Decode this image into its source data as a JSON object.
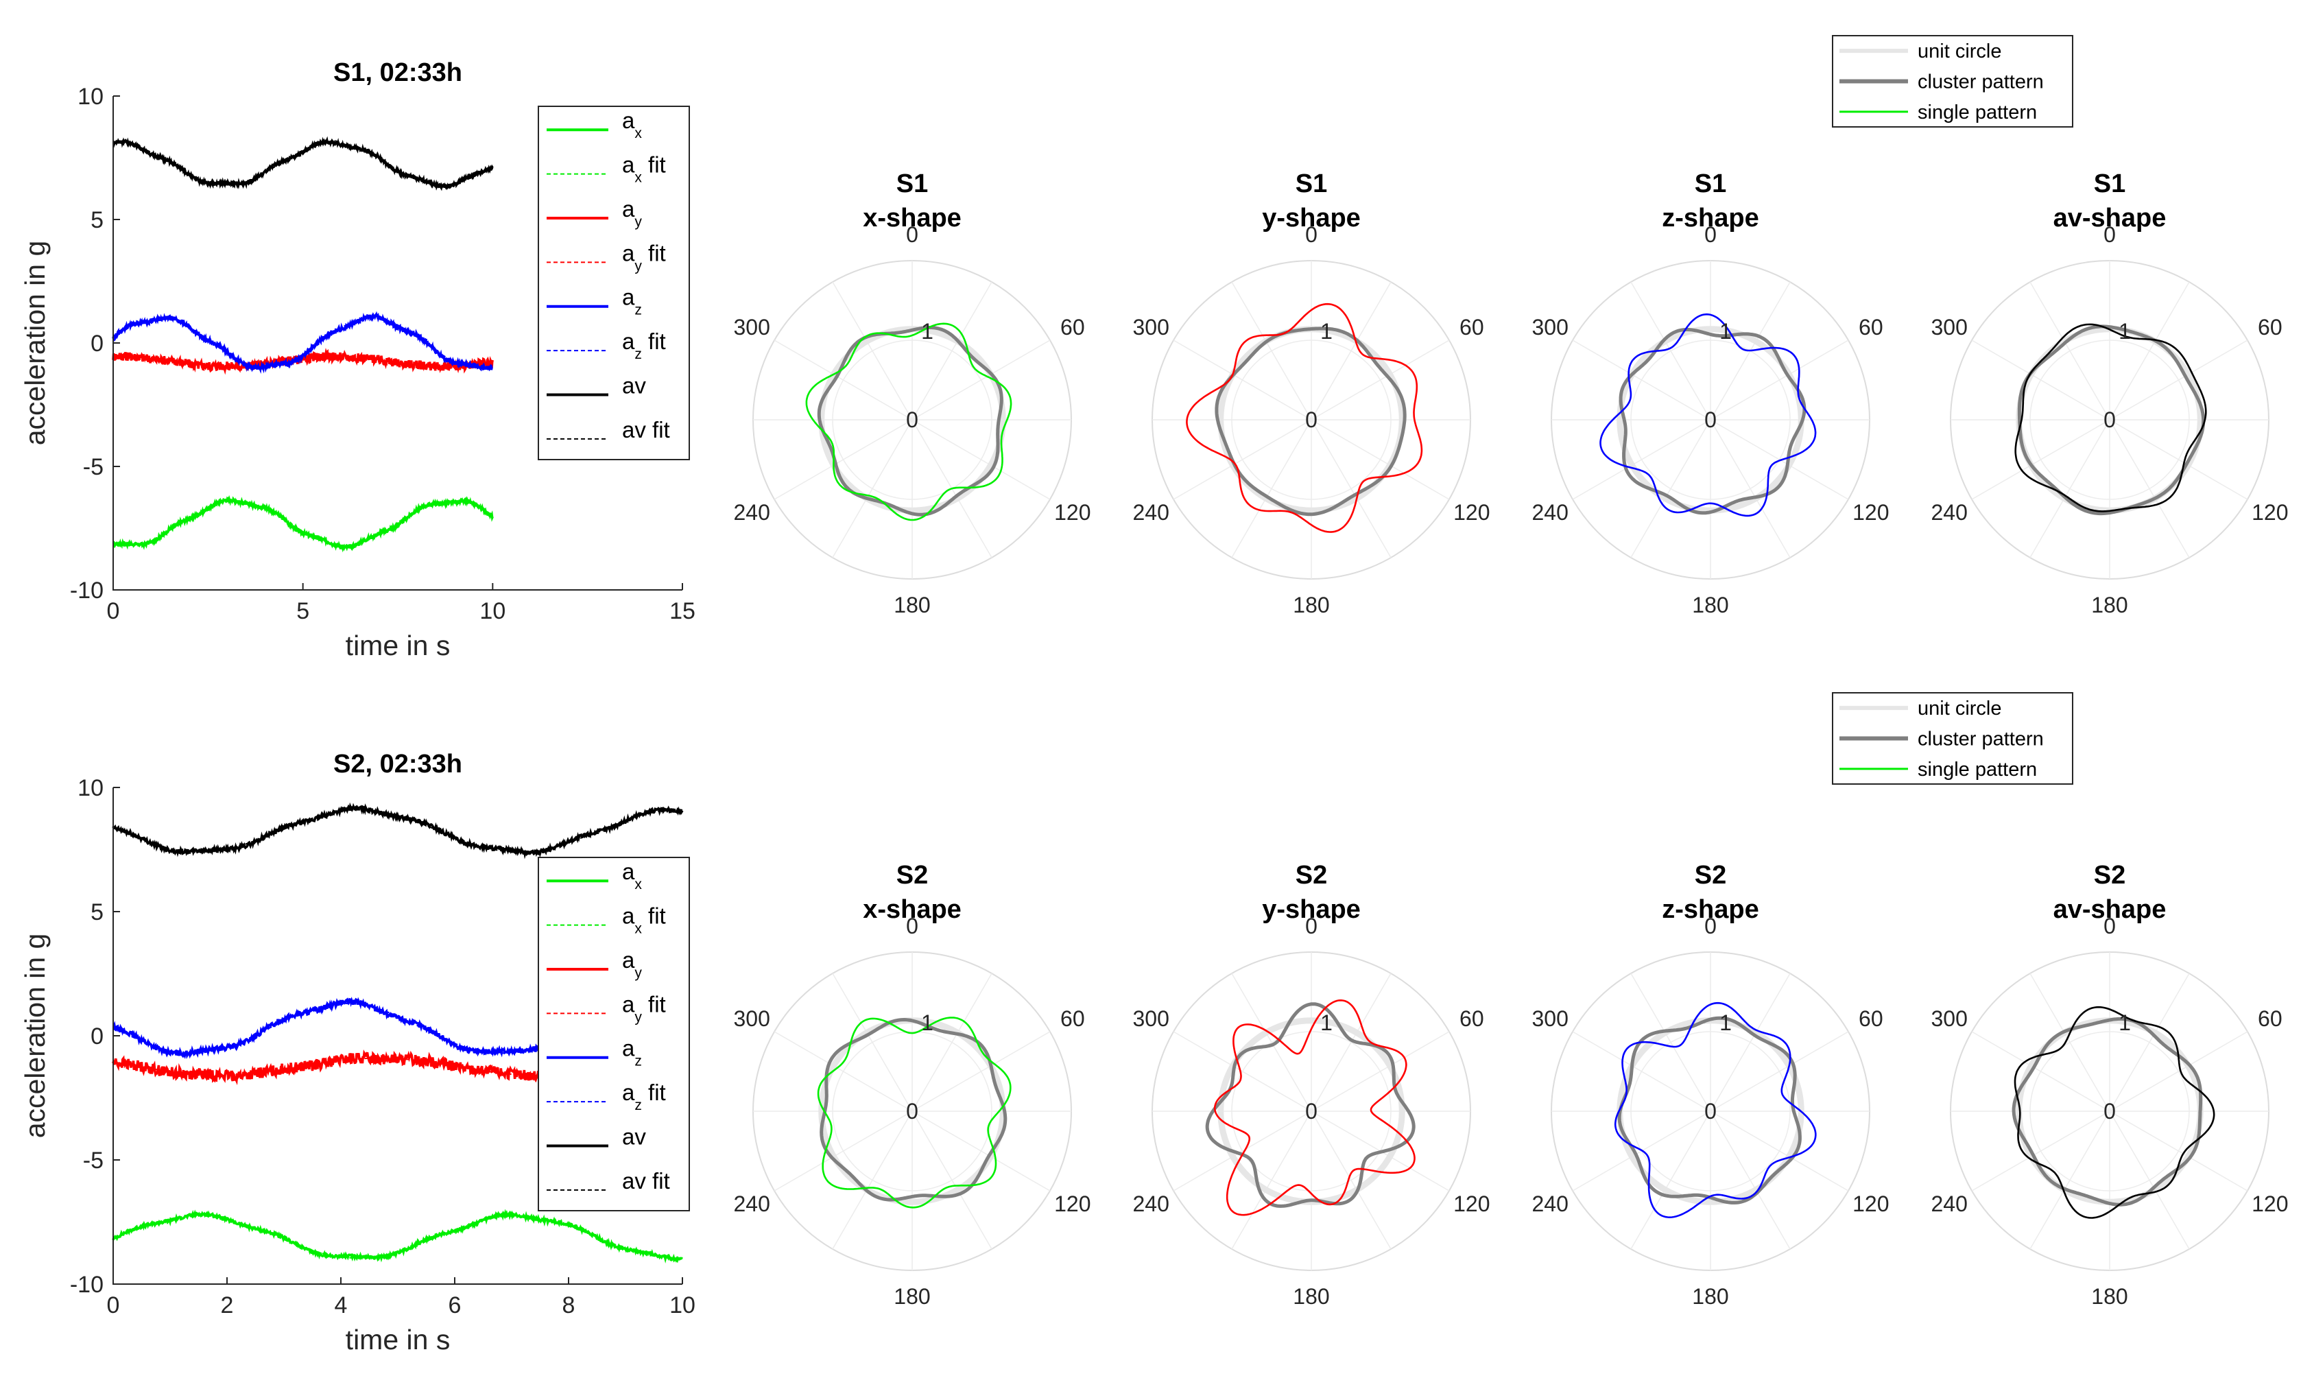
{
  "chart_data": [
    {
      "type": "line",
      "title": "S1, 02:33h",
      "xlabel": "time in s",
      "ylabel": "acceleration in g",
      "xlim": [
        0,
        15
      ],
      "ylim": [
        -10,
        10
      ],
      "xticks": [
        "0",
        "5",
        "10",
        "15"
      ],
      "yticks": [
        "-10",
        "-5",
        "0",
        "5",
        "10"
      ],
      "x_range": [
        0,
        10
      ],
      "legend_position": "top-right",
      "legend": [
        {
          "name": "a",
          "sub": "x",
          "suffix": "",
          "color": "#00ee00",
          "dash": false
        },
        {
          "name": "a",
          "sub": "x",
          "suffix": " fit",
          "color": "#00ee00",
          "dash": true
        },
        {
          "name": "a",
          "sub": "y",
          "suffix": "",
          "color": "#ff0000",
          "dash": false
        },
        {
          "name": "a",
          "sub": "y",
          "suffix": " fit",
          "color": "#ff0000",
          "dash": true
        },
        {
          "name": "a",
          "sub": "z",
          "suffix": "",
          "color": "#0000ff",
          "dash": false
        },
        {
          "name": "a",
          "sub": "z",
          "suffix": " fit",
          "color": "#0000ff",
          "dash": true
        },
        {
          "name": "av",
          "sub": "",
          "suffix": "",
          "color": "#000000",
          "dash": false
        },
        {
          "name": "av",
          "sub": "",
          "suffix": " fit",
          "color": "#000000",
          "dash": true
        }
      ],
      "series": [
        {
          "name": "ax",
          "color": "#00ee00",
          "offset": -7.3,
          "amp": 0.9,
          "period": 5.7,
          "phase": 4.3,
          "noise": 0.06
        },
        {
          "name": "ay",
          "color": "#ff0000",
          "offset": -0.75,
          "amp": 0.2,
          "period": 5.7,
          "phase": 1.4,
          "noise": 0.18
        },
        {
          "name": "az",
          "color": "#0000ff",
          "offset": 0.0,
          "amp": 1.0,
          "period": 5.6,
          "phase": 0.2,
          "noise": 0.08
        },
        {
          "name": "av",
          "color": "#000000",
          "offset": 7.25,
          "amp": 0.85,
          "period": 5.7,
          "phase": 1.45,
          "noise": 0.06
        }
      ]
    },
    {
      "type": "line",
      "title": "S2, 02:33h",
      "xlabel": "time in s",
      "ylabel": "acceleration in g",
      "xlim": [
        0,
        10
      ],
      "ylim": [
        -10,
        10
      ],
      "xticks": [
        "0",
        "2",
        "4",
        "6",
        "8",
        "10"
      ],
      "yticks": [
        "-10",
        "-5",
        "0",
        "5",
        "10"
      ],
      "x_range": [
        0,
        10
      ],
      "legend_position": "right",
      "legend": [
        {
          "name": "a",
          "sub": "x",
          "suffix": "",
          "color": "#00ee00",
          "dash": false
        },
        {
          "name": "a",
          "sub": "x",
          "suffix": " fit",
          "color": "#00ee00",
          "dash": true
        },
        {
          "name": "a",
          "sub": "y",
          "suffix": "",
          "color": "#ff0000",
          "dash": false
        },
        {
          "name": "a",
          "sub": "y",
          "suffix": " fit",
          "color": "#ff0000",
          "dash": true
        },
        {
          "name": "a",
          "sub": "z",
          "suffix": "",
          "color": "#0000ff",
          "dash": false
        },
        {
          "name": "a",
          "sub": "z",
          "suffix": " fit",
          "color": "#0000ff",
          "dash": true
        },
        {
          "name": "av",
          "sub": "",
          "suffix": "",
          "color": "#000000",
          "dash": false
        },
        {
          "name": "av",
          "sub": "",
          "suffix": " fit",
          "color": "#000000",
          "dash": true
        }
      ],
      "series": [
        {
          "name": "ax",
          "color": "#00ee00",
          "offset": -8.1,
          "amp": 0.85,
          "period": 5.6,
          "phase": -0.1,
          "noise": 0.06
        },
        {
          "name": "ay",
          "color": "#ff0000",
          "offset": -1.25,
          "amp": 0.35,
          "period": 5.6,
          "phase": 2.6,
          "noise": 0.22
        },
        {
          "name": "az",
          "color": "#0000ff",
          "offset": 0.3,
          "amp": 1.0,
          "period": 5.4,
          "phase": 3.1,
          "noise": 0.1
        },
        {
          "name": "av",
          "color": "#000000",
          "offset": 8.25,
          "amp": 0.85,
          "period": 5.6,
          "phase": 3.0,
          "noise": 0.08
        }
      ]
    },
    {
      "type": "polar",
      "sensor": "S1",
      "shape": "x-shape",
      "angle_labels": [
        "0",
        "60",
        "120",
        "180",
        "240",
        "300"
      ],
      "r_labels": [
        "0",
        "1"
      ],
      "color": "#00ee00",
      "cluster_amp": [
        0.0,
        0.04
      ],
      "single_amp": [
        0.05,
        0.09
      ],
      "single_bias": 0.02
    },
    {
      "type": "polar",
      "sensor": "S1",
      "shape": "y-shape",
      "angle_labels": [
        "0",
        "60",
        "120",
        "180",
        "240",
        "300"
      ],
      "r_labels": [
        "0",
        "1"
      ],
      "color": "#ff0000",
      "cluster_amp": [
        0.03,
        0.02
      ],
      "single_amp": [
        0.1,
        0.12
      ],
      "single_bias": 0.12
    },
    {
      "type": "polar",
      "sensor": "S1",
      "shape": "z-shape",
      "angle_labels": [
        "0",
        "60",
        "120",
        "180",
        "240",
        "300"
      ],
      "r_labels": [
        "0",
        "1"
      ],
      "color": "#0000ff",
      "cluster_amp": [
        0.02,
        0.05
      ],
      "single_amp": [
        0.06,
        0.12
      ],
      "single_bias": 0.03
    },
    {
      "type": "polar",
      "sensor": "S1",
      "shape": "av-shape",
      "angle_labels": [
        "0",
        "60",
        "120",
        "180",
        "240",
        "300"
      ],
      "r_labels": [
        "0",
        "1"
      ],
      "color": "#000000",
      "cluster_amp": [
        0.02,
        0.02
      ],
      "single_amp": [
        0.05,
        0.04
      ],
      "single_bias": 0.02
    },
    {
      "type": "polar",
      "sensor": "S2",
      "shape": "x-shape",
      "angle_labels": [
        "0",
        "60",
        "120",
        "180",
        "240",
        "300"
      ],
      "r_labels": [
        "0",
        "1"
      ],
      "color": "#00ee00",
      "cluster_amp": [
        0.02,
        0.04
      ],
      "single_amp": [
        0.06,
        0.1
      ],
      "single_bias": 0.02
    },
    {
      "type": "polar",
      "sensor": "S2",
      "shape": "y-shape",
      "angle_labels": [
        "0",
        "60",
        "120",
        "180",
        "240",
        "300"
      ],
      "r_labels": [
        "0",
        "1"
      ],
      "color": "#ff0000",
      "cluster_amp": [
        0.08,
        0.1
      ],
      "single_amp": [
        0.15,
        0.2
      ],
      "single_bias": 0.0
    },
    {
      "type": "polar",
      "sensor": "S2",
      "shape": "z-shape",
      "angle_labels": [
        "0",
        "60",
        "120",
        "180",
        "240",
        "300"
      ],
      "r_labels": [
        "0",
        "1"
      ],
      "color": "#0000ff",
      "cluster_amp": [
        0.03,
        0.05
      ],
      "single_amp": [
        0.1,
        0.12
      ],
      "single_bias": 0.02
    },
    {
      "type": "polar",
      "sensor": "S2",
      "shape": "av-shape",
      "angle_labels": [
        "0",
        "60",
        "120",
        "180",
        "240",
        "300"
      ],
      "r_labels": [
        "0",
        "1"
      ],
      "color": "#000000",
      "cluster_amp": [
        0.02,
        0.03
      ],
      "single_amp": [
        0.07,
        0.08
      ],
      "single_bias": 0.03
    }
  ],
  "polar_legend": [
    {
      "label": "unit circle",
      "color": "#e6e6e6"
    },
    {
      "label": "cluster pattern",
      "color": "#7f7f7f"
    },
    {
      "label": "single pattern",
      "color": "#00ee00"
    }
  ]
}
